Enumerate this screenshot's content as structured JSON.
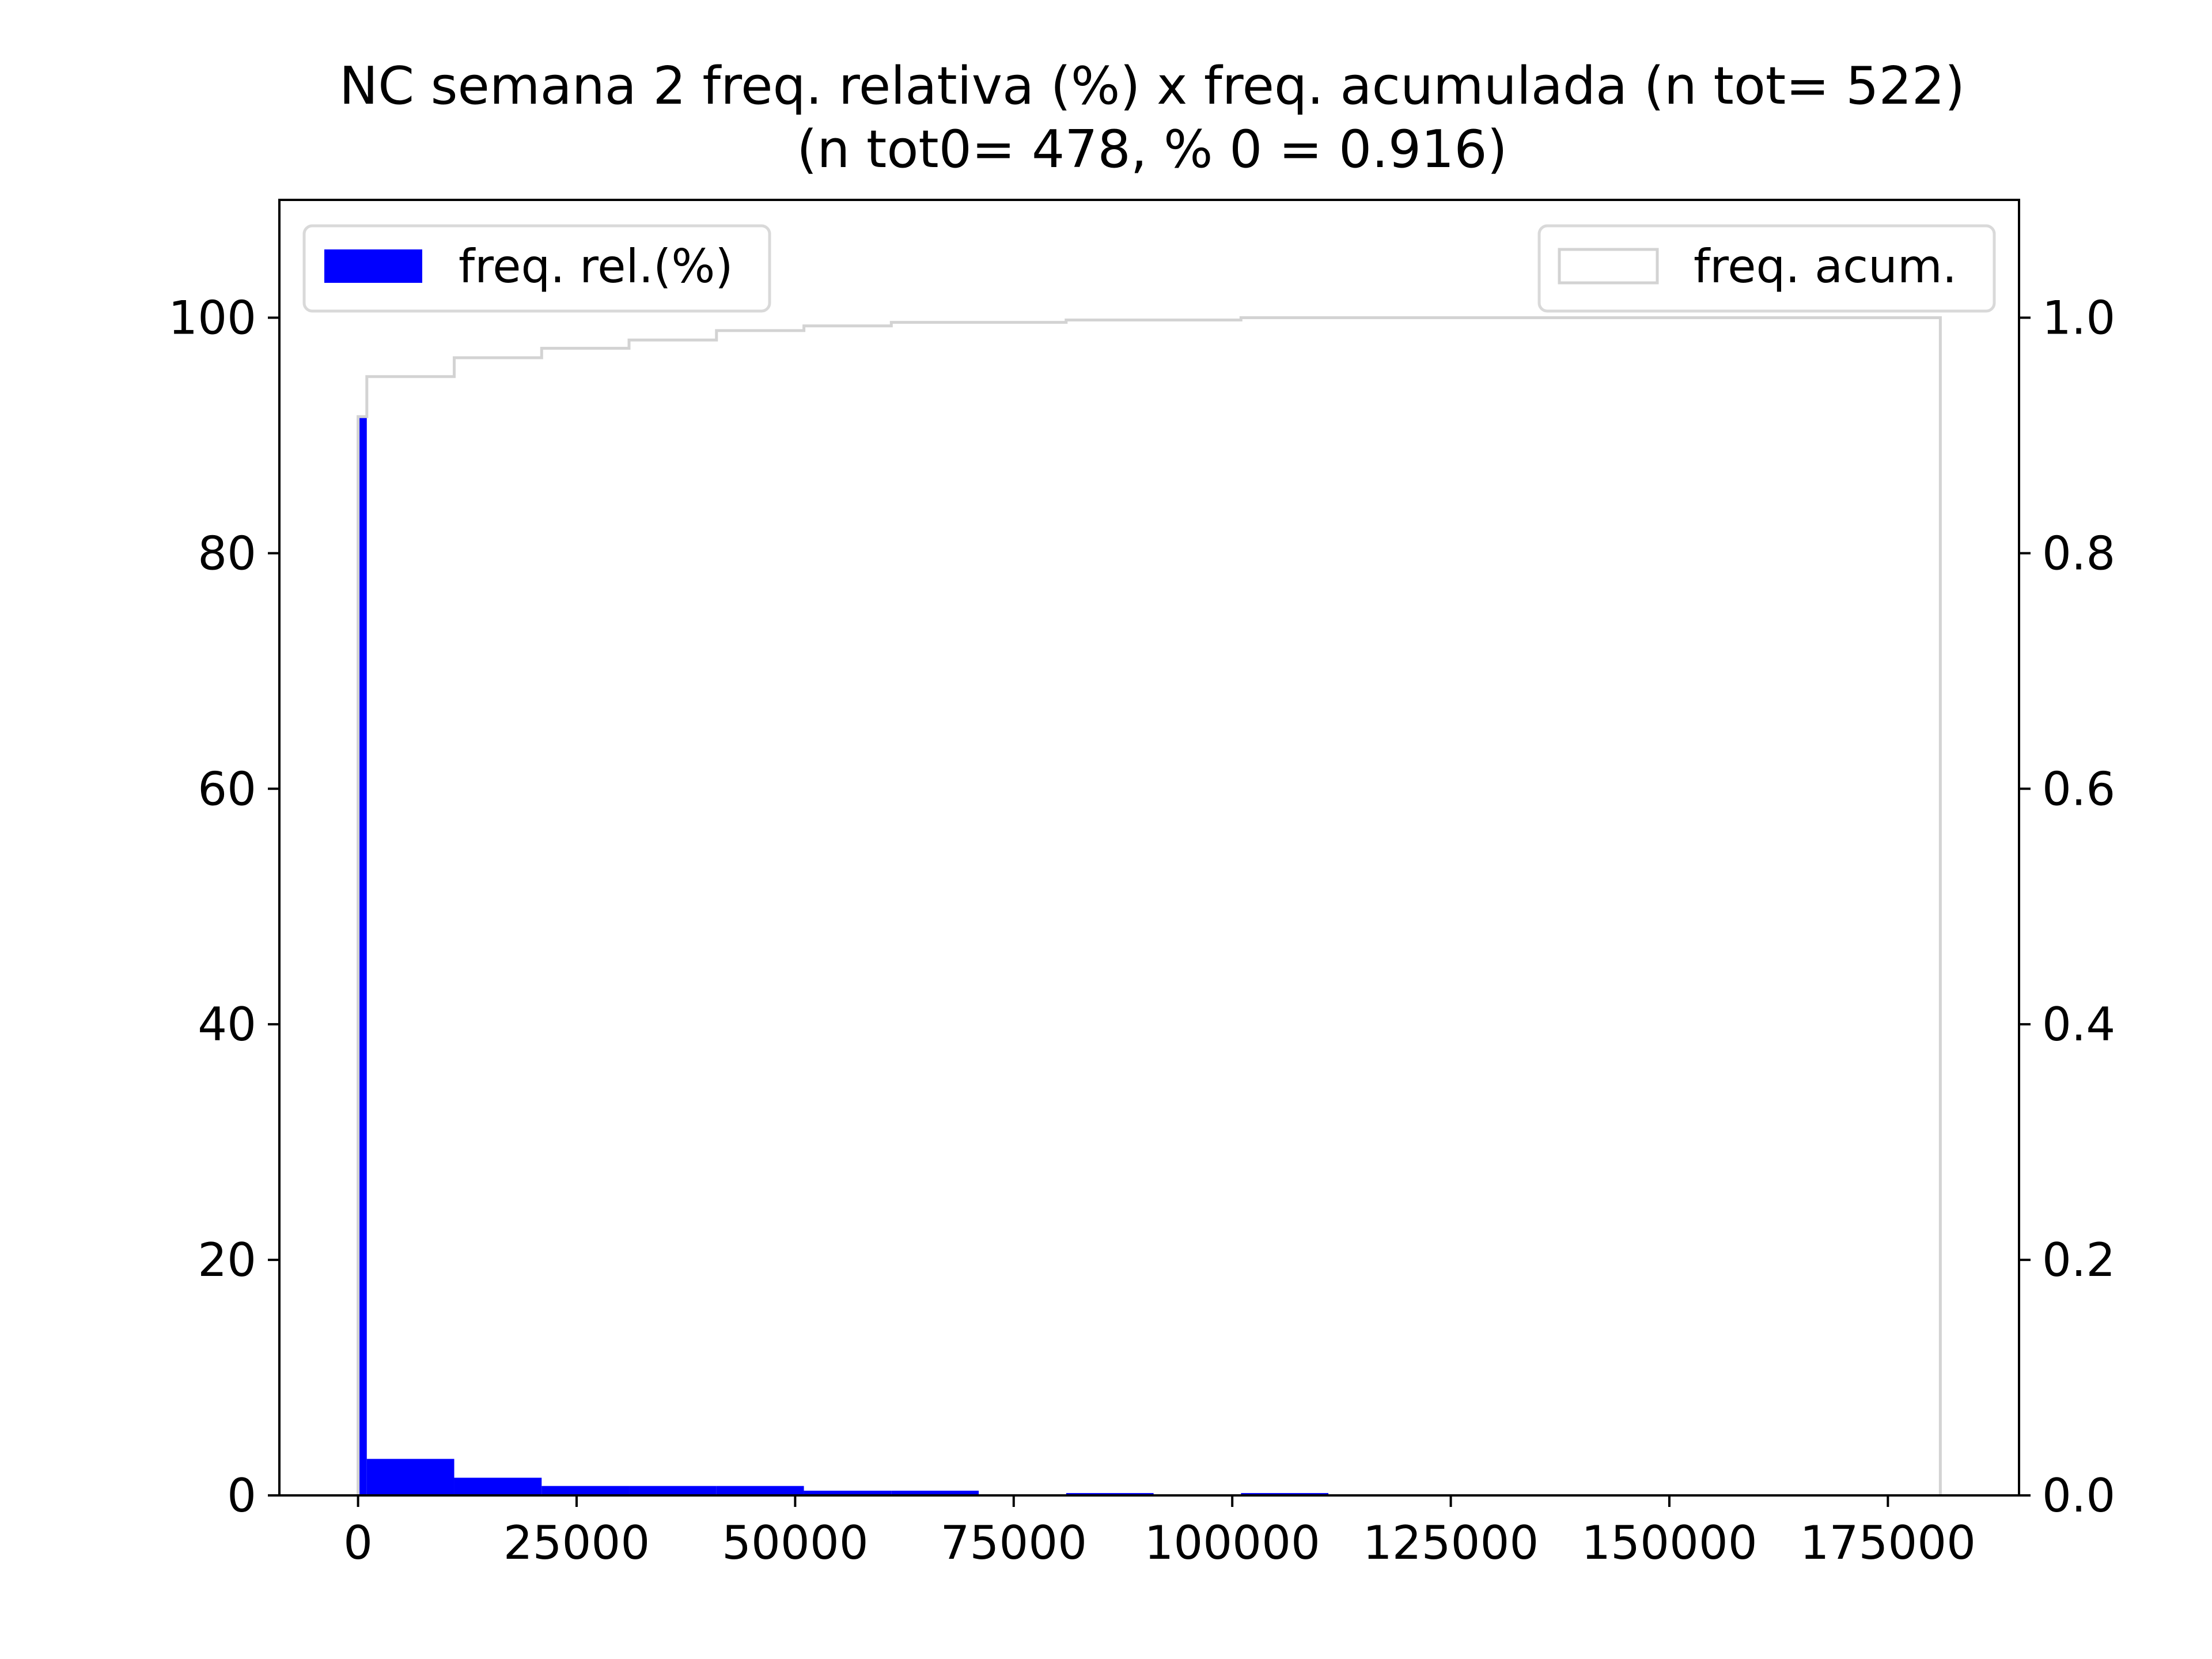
{
  "colors": {
    "rel_fill": "#0000ff",
    "acum_stroke": "#d3d3d3",
    "axis": "#000000",
    "legend_border": "#d9d9d9",
    "background": "#ffffff"
  },
  "chart_data": {
    "type": "bar",
    "title_line1": "NC semana 2 freq. relativa (%) x freq. acumulada (n tot= 522)",
    "title_line2": "(n tot0= 478, % 0 = 0.916)",
    "xlabel": "",
    "ylabel": "",
    "xlim": [
      -9000,
      190000
    ],
    "ylim_left": [
      0,
      110
    ],
    "ylim_right": [
      0,
      1.1
    ],
    "x_ticks": [
      0,
      25000,
      50000,
      75000,
      100000,
      125000,
      150000,
      175000
    ],
    "x_tick_labels": [
      "0",
      "25000",
      "50000",
      "75000",
      "100000",
      "125000",
      "150000",
      "175000"
    ],
    "y_left_ticks": [
      0,
      20,
      40,
      60,
      80,
      100
    ],
    "y_left_tick_labels": [
      "0",
      "20",
      "40",
      "60",
      "80",
      "100"
    ],
    "y_right_ticks": [
      0.0,
      0.2,
      0.4,
      0.6,
      0.8,
      1.0
    ],
    "y_right_tick_labels": [
      "0.0",
      "0.2",
      "0.4",
      "0.6",
      "0.8",
      "1.0"
    ],
    "grid": false,
    "legend": [
      {
        "label": "freq. rel.(%)",
        "position": "upper-left"
      },
      {
        "label": "freq. acum.",
        "position": "upper-right"
      }
    ],
    "series": [
      {
        "name": "freq. rel.(%)",
        "type": "bar-histogram",
        "bins": [
          {
            "x0": 0,
            "x1": 1000,
            "value": 91.6
          },
          {
            "x0": 1000,
            "x1": 11000,
            "value": 3.1
          },
          {
            "x0": 11000,
            "x1": 21000,
            "value": 1.5
          },
          {
            "x0": 21000,
            "x1": 31000,
            "value": 0.8
          },
          {
            "x0": 31000,
            "x1": 41000,
            "value": 0.8
          },
          {
            "x0": 41000,
            "x1": 51000,
            "value": 0.8
          },
          {
            "x0": 51000,
            "x1": 61000,
            "value": 0.4
          },
          {
            "x0": 61000,
            "x1": 71000,
            "value": 0.4
          },
          {
            "x0": 71000,
            "x1": 81000,
            "value": 0.0
          },
          {
            "x0": 81000,
            "x1": 91000,
            "value": 0.2
          },
          {
            "x0": 91000,
            "x1": 101000,
            "value": 0.0
          },
          {
            "x0": 101000,
            "x1": 111000,
            "value": 0.2
          },
          {
            "x0": 111000,
            "x1": 181000,
            "value": 0.0
          }
        ]
      },
      {
        "name": "freq. acum.",
        "type": "step-cumulative",
        "x_start": 0,
        "x_end": 181000,
        "steps": [
          {
            "x": 0,
            "value": 0.916
          },
          {
            "x": 1000,
            "value": 0.95
          },
          {
            "x": 11000,
            "value": 0.966
          },
          {
            "x": 21000,
            "value": 0.974
          },
          {
            "x": 31000,
            "value": 0.981
          },
          {
            "x": 41000,
            "value": 0.989
          },
          {
            "x": 51000,
            "value": 0.993
          },
          {
            "x": 61000,
            "value": 0.996
          },
          {
            "x": 81000,
            "value": 0.998
          },
          {
            "x": 101000,
            "value": 1.0
          }
        ]
      }
    ]
  }
}
